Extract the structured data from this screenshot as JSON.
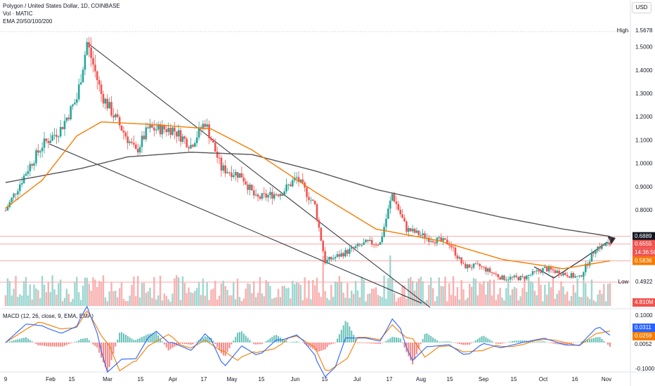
{
  "header": {
    "symbol_line": "Polygon / United States Dollar, 1D, COINBASE",
    "volume_line": "Vol · MATIC",
    "ema_line": "EMA 20/50/100/200",
    "macd_line": "MACD (12, 26, close, 9, EMA, EMA)",
    "currency": "USD"
  },
  "price_axis": {
    "ticks": [
      "1.5000",
      "1.4000",
      "1.3000",
      "1.2000",
      "1.1000",
      "1.0000",
      "0.9000",
      "0.8000"
    ],
    "high_label": "High",
    "high_value": "1.5678",
    "low_label": "Low",
    "low_value": "0.4922",
    "last_price": "0.6555",
    "countdown": "14:36:56",
    "ema_tag_1": "0.6889",
    "ema_tag_2": "0.5836",
    "volume_tag": "4.810M"
  },
  "macd_axis": {
    "ticks": [
      "0.1000",
      "-0.1000"
    ],
    "macd_value": "0.0311",
    "signal_value": "0.0259",
    "hist_value": "0.0052"
  },
  "time_axis": [
    "9",
    "Feb",
    "15",
    "Mar",
    "15",
    "Apr",
    "17",
    "May",
    "15",
    "Jun",
    "15",
    "Jul",
    "17",
    "Aug",
    "15",
    "Sep",
    "15",
    "Oct",
    "16",
    "Nov"
  ],
  "colors": {
    "up": "#26a69a",
    "down": "#ef5350",
    "ema_orange": "#f57c00",
    "ema_gray": "#555555",
    "trendline": "#2a2e39",
    "hline": "#f7a9a7",
    "ema_tag_dark": "#131722"
  },
  "chart_data": {
    "type": "line",
    "title": "Polygon / United States Dollar, 1D, COINBASE",
    "x_range": [
      "2022-01-09",
      "2022-11-02"
    ],
    "price_ylim": [
      0.49,
      1.5678
    ],
    "price_anchors": [
      {
        "date": "2022-01-09",
        "value": 0.8
      },
      {
        "date": "2022-01-20",
        "value": 0.98
      },
      {
        "date": "2022-01-27",
        "value": 1.08
      },
      {
        "date": "2022-02-05",
        "value": 1.15
      },
      {
        "date": "2022-02-13",
        "value": 1.28
      },
      {
        "date": "2022-02-18",
        "value": 1.52
      },
      {
        "date": "2022-02-25",
        "value": 1.3
      },
      {
        "date": "2022-03-05",
        "value": 1.18
      },
      {
        "date": "2022-03-14",
        "value": 1.05
      },
      {
        "date": "2022-03-20",
        "value": 1.15
      },
      {
        "date": "2022-04-01",
        "value": 1.15
      },
      {
        "date": "2022-04-10",
        "value": 1.08
      },
      {
        "date": "2022-04-17",
        "value": 1.18
      },
      {
        "date": "2022-04-25",
        "value": 0.98
      },
      {
        "date": "2022-05-05",
        "value": 0.95
      },
      {
        "date": "2022-05-12",
        "value": 0.85
      },
      {
        "date": "2022-05-25",
        "value": 0.88
      },
      {
        "date": "2022-06-01",
        "value": 0.94
      },
      {
        "date": "2022-06-10",
        "value": 0.82
      },
      {
        "date": "2022-06-15",
        "value": 0.58
      },
      {
        "date": "2022-06-25",
        "value": 0.62
      },
      {
        "date": "2022-07-05",
        "value": 0.66
      },
      {
        "date": "2022-07-12",
        "value": 0.66
      },
      {
        "date": "2022-07-18",
        "value": 0.87
      },
      {
        "date": "2022-07-25",
        "value": 0.72
      },
      {
        "date": "2022-08-05",
        "value": 0.68
      },
      {
        "date": "2022-08-15",
        "value": 0.66
      },
      {
        "date": "2022-08-22",
        "value": 0.56
      },
      {
        "date": "2022-08-30",
        "value": 0.56
      },
      {
        "date": "2022-09-10",
        "value": 0.51
      },
      {
        "date": "2022-09-20",
        "value": 0.51
      },
      {
        "date": "2022-10-01",
        "value": 0.55
      },
      {
        "date": "2022-10-10",
        "value": 0.53
      },
      {
        "date": "2022-10-18",
        "value": 0.51
      },
      {
        "date": "2022-10-26",
        "value": 0.64
      },
      {
        "date": "2022-11-02",
        "value": 0.6555
      }
    ],
    "ema_200_anchors": [
      {
        "date": "2022-01-09",
        "value": 0.92
      },
      {
        "date": "2022-02-15",
        "value": 0.98
      },
      {
        "date": "2022-03-10",
        "value": 1.03
      },
      {
        "date": "2022-04-10",
        "value": 1.05
      },
      {
        "date": "2022-05-10",
        "value": 1.04
      },
      {
        "date": "2022-06-10",
        "value": 0.97
      },
      {
        "date": "2022-07-10",
        "value": 0.89
      },
      {
        "date": "2022-08-10",
        "value": 0.83
      },
      {
        "date": "2022-09-10",
        "value": 0.77
      },
      {
        "date": "2022-10-10",
        "value": 0.72
      },
      {
        "date": "2022-11-02",
        "value": 0.6889
      }
    ],
    "ema_50_anchors": [
      {
        "date": "2022-01-09",
        "value": 0.81
      },
      {
        "date": "2022-01-27",
        "value": 0.93
      },
      {
        "date": "2022-02-13",
        "value": 1.12
      },
      {
        "date": "2022-02-25",
        "value": 1.18
      },
      {
        "date": "2022-03-20",
        "value": 1.17
      },
      {
        "date": "2022-04-20",
        "value": 1.15
      },
      {
        "date": "2022-05-10",
        "value": 1.06
      },
      {
        "date": "2022-06-10",
        "value": 0.88
      },
      {
        "date": "2022-07-10",
        "value": 0.72
      },
      {
        "date": "2022-08-10",
        "value": 0.67
      },
      {
        "date": "2022-09-10",
        "value": 0.59
      },
      {
        "date": "2022-10-10",
        "value": 0.55
      },
      {
        "date": "2022-11-02",
        "value": 0.5836
      }
    ],
    "horizontal_levels": [
      0.6889,
      0.6555,
      0.5836,
      0.4922
    ],
    "macd": {
      "ylim": [
        -0.13,
        0.13
      ],
      "macd": 0.0311,
      "signal": 0.0259,
      "histogram": 0.0052
    },
    "volume_last": "4.810M",
    "high": 1.5678,
    "low": 0.4922
  }
}
